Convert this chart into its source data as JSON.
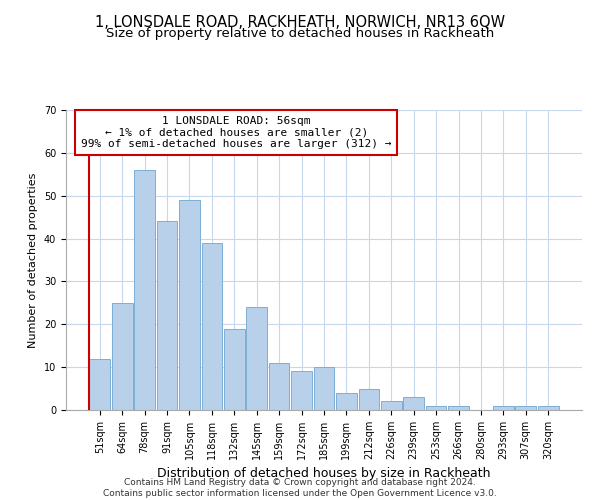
{
  "title": "1, LONSDALE ROAD, RACKHEATH, NORWICH, NR13 6QW",
  "subtitle": "Size of property relative to detached houses in Rackheath",
  "xlabel": "Distribution of detached houses by size in Rackheath",
  "ylabel": "Number of detached properties",
  "categories": [
    "51sqm",
    "64sqm",
    "78sqm",
    "91sqm",
    "105sqm",
    "118sqm",
    "132sqm",
    "145sqm",
    "159sqm",
    "172sqm",
    "185sqm",
    "199sqm",
    "212sqm",
    "226sqm",
    "239sqm",
    "253sqm",
    "266sqm",
    "280sqm",
    "293sqm",
    "307sqm",
    "320sqm"
  ],
  "values": [
    12,
    25,
    56,
    44,
    49,
    39,
    19,
    24,
    11,
    9,
    10,
    4,
    5,
    2,
    3,
    1,
    1,
    0,
    1,
    1,
    1
  ],
  "bar_color": "#b8d0ea",
  "bar_edge_color": "#7aafd4",
  "annotation_box_text": "1 LONSDALE ROAD: 56sqm\n← 1% of detached houses are smaller (2)\n99% of semi-detached houses are larger (312) →",
  "annotation_box_color": "white",
  "annotation_box_edge_color": "#cc0000",
  "vline_color": "#cc0000",
  "ylim": [
    0,
    70
  ],
  "yticks": [
    0,
    10,
    20,
    30,
    40,
    50,
    60,
    70
  ],
  "grid_color": "#c8d8ec",
  "footnote": "Contains HM Land Registry data © Crown copyright and database right 2024.\nContains public sector information licensed under the Open Government Licence v3.0.",
  "title_fontsize": 10.5,
  "subtitle_fontsize": 9.5,
  "xlabel_fontsize": 9,
  "ylabel_fontsize": 8,
  "tick_fontsize": 7,
  "annot_fontsize": 8,
  "footnote_fontsize": 6.5
}
